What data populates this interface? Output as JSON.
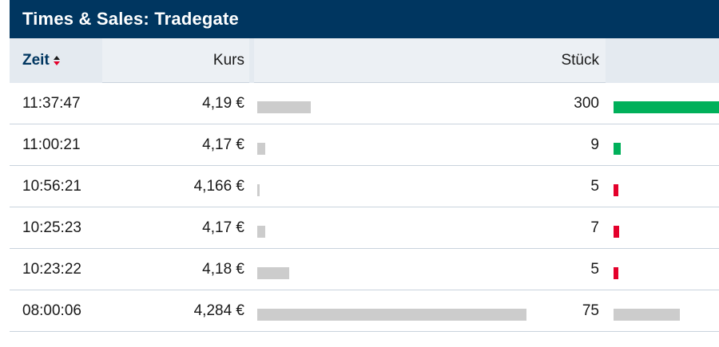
{
  "header": {
    "title": "Times & Sales: Tradegate"
  },
  "columns": {
    "zeit": "Zeit",
    "kurs": "Kurs",
    "stueck": "Stück"
  },
  "colors": {
    "buy": "#00b05a",
    "sell": "#e4002b",
    "neutral": "#cccccc",
    "header_bg": "#003660"
  },
  "rows": [
    {
      "time": "11:37:47",
      "price": "4,19 €",
      "qty": "300",
      "price_level": 0.2,
      "qty_level": 1.0,
      "direction": "buy"
    },
    {
      "time": "11:00:21",
      "price": "4,17 €",
      "qty": "9",
      "price_level": 0.03,
      "qty_level": 0.07,
      "direction": "buy"
    },
    {
      "time": "10:56:21",
      "price": "4,166 €",
      "qty": "5",
      "price_level": 0.01,
      "qty_level": 0.04,
      "direction": "sell"
    },
    {
      "time": "10:25:23",
      "price": "4,17 €",
      "qty": "7",
      "price_level": 0.03,
      "qty_level": 0.05,
      "direction": "sell"
    },
    {
      "time": "10:23:22",
      "price": "4,18 €",
      "qty": "5",
      "price_level": 0.12,
      "qty_level": 0.04,
      "direction": "sell"
    },
    {
      "time": "08:00:06",
      "price": "4,284 €",
      "qty": "75",
      "price_level": 1.0,
      "qty_level": 0.63,
      "direction": "neutral"
    }
  ]
}
